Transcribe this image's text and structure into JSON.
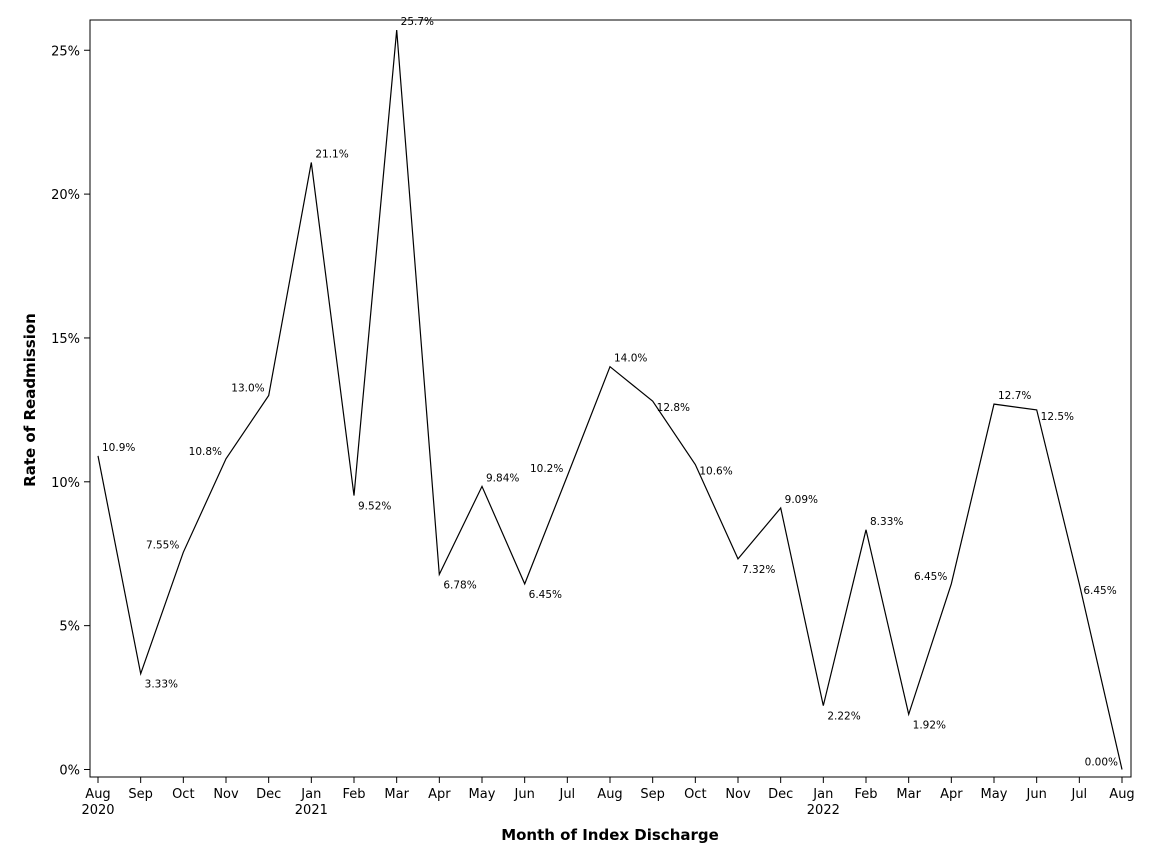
{
  "chart_data": {
    "type": "line",
    "title": "",
    "xlabel": "Month of Index Discharge",
    "ylabel": "Rate of Readmission",
    "ylim": [
      0,
      26.5
    ],
    "yticks": [
      "0%",
      "5%",
      "10%",
      "15%",
      "20%",
      "25%"
    ],
    "ytick_values": [
      0,
      5,
      10,
      15,
      20,
      25
    ],
    "grid": false,
    "legend": "none",
    "categories": [
      "Aug",
      "Sep",
      "Oct",
      "Nov",
      "Dec",
      "Jan",
      "Feb",
      "Mar",
      "Apr",
      "May",
      "Jun",
      "Jul",
      "Aug",
      "Sep",
      "Oct",
      "Nov",
      "Dec",
      "Jan",
      "Feb",
      "Mar",
      "Apr",
      "May",
      "Jun",
      "Jul",
      "Aug"
    ],
    "year_labels": [
      {
        "index": 0,
        "label": "2020"
      },
      {
        "index": 5,
        "label": "2021"
      },
      {
        "index": 17,
        "label": "2022"
      }
    ],
    "series": [
      {
        "values": [
          10.9,
          3.33,
          7.55,
          10.8,
          13.0,
          21.1,
          9.52,
          25.7,
          6.78,
          9.84,
          6.45,
          10.2,
          14.0,
          12.8,
          10.6,
          7.32,
          9.09,
          2.22,
          8.33,
          1.92,
          6.45,
          12.7,
          12.5,
          6.45,
          0.0
        ],
        "labels": [
          "10.9%",
          "3.33%",
          "7.55%",
          "10.8%",
          "13.0%",
          "21.1%",
          "9.52%",
          "25.7%",
          "6.78%",
          "9.84%",
          "6.45%",
          "10.2%",
          "14.0%",
          "12.8%",
          "10.6%",
          "7.32%",
          "9.09%",
          "2.22%",
          "8.33%",
          "1.92%",
          "6.45%",
          "12.7%",
          "12.5%",
          "6.45%",
          "0.00%"
        ],
        "color": "#000000"
      }
    ]
  }
}
